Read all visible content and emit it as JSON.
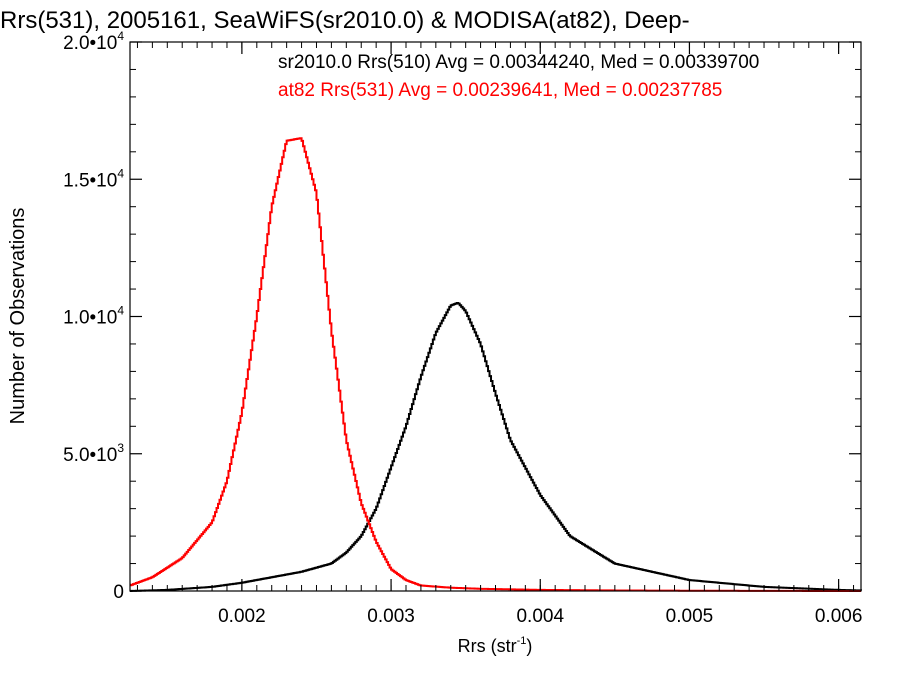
{
  "chart_data": {
    "type": "line",
    "title": "Rrs(531), 2005161, SeaWiFS(sr2010.0) & MODISA(at82), Deep-",
    "xlabel": "Rrs (str",
    "xlabel_sup": "-1",
    "xlabel_close": ")",
    "ylabel": "Number of Observations",
    "xlim": [
      0.00125,
      0.00615
    ],
    "ylim": [
      0,
      20000
    ],
    "xticks": [
      {
        "value": 0.002,
        "label": "0.002"
      },
      {
        "value": 0.003,
        "label": "0.003"
      },
      {
        "value": 0.004,
        "label": "0.004"
      },
      {
        "value": 0.005,
        "label": "0.005"
      },
      {
        "value": 0.006,
        "label": "0.006"
      }
    ],
    "yticks": [
      {
        "value": 0,
        "base": "0",
        "exp": ""
      },
      {
        "value": 5000,
        "base": "5.0•10",
        "exp": "3"
      },
      {
        "value": 10000,
        "base": "1.0•10",
        "exp": "4"
      },
      {
        "value": 15000,
        "base": "1.5•10",
        "exp": "4"
      },
      {
        "value": 20000,
        "base": "2.0•10",
        "exp": "4"
      }
    ],
    "grid": false,
    "series": [
      {
        "annotation": "sr2010.0 Rrs(510) Avg = 0.00344240, Med = 0.00339700",
        "color": "#000000",
        "x": [
          0.00125,
          0.0015,
          0.0018,
          0.002,
          0.0022,
          0.0024,
          0.0026,
          0.0027,
          0.0028,
          0.0029,
          0.003,
          0.0031,
          0.0032,
          0.0033,
          0.0034,
          0.00345,
          0.0035,
          0.0036,
          0.0037,
          0.0038,
          0.004,
          0.0042,
          0.0045,
          0.005,
          0.0055,
          0.006,
          0.00615
        ],
        "values": [
          0,
          40,
          150,
          300,
          500,
          700,
          1000,
          1400,
          2000,
          3000,
          4500,
          6000,
          7800,
          9400,
          10400,
          10500,
          10200,
          9000,
          7200,
          5500,
          3500,
          2000,
          1000,
          400,
          150,
          40,
          20
        ]
      },
      {
        "annotation": "at82 Rrs(531) Avg = 0.00239641, Med = 0.00237785",
        "color": "#ff0000",
        "x": [
          0.00125,
          0.0014,
          0.0016,
          0.0018,
          0.0019,
          0.002,
          0.0021,
          0.0022,
          0.0023,
          0.0024,
          0.0025,
          0.0026,
          0.0027,
          0.0028,
          0.0029,
          0.003,
          0.0031,
          0.0032,
          0.0034,
          0.0036,
          0.004,
          0.0045,
          0.005,
          0.006,
          0.00615
        ],
        "values": [
          200,
          500,
          1200,
          2500,
          4000,
          6500,
          10000,
          14000,
          16400,
          16500,
          14500,
          9500,
          5500,
          3200,
          1800,
          800,
          400,
          200,
          120,
          80,
          40,
          20,
          10,
          0,
          0
        ]
      }
    ]
  }
}
